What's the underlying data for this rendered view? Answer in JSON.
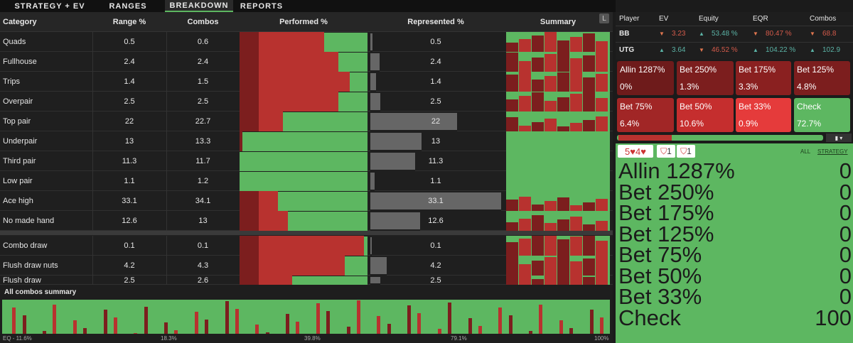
{
  "tabs": [
    "STRATEGY + EV",
    "RANGES",
    "BREAKDOWN",
    "REPORTS"
  ],
  "table": {
    "headers": [
      "Category",
      "Range %",
      "Combos",
      "Performed %",
      "Represented %",
      "Summary"
    ],
    "corner": "L",
    "rows": [
      {
        "category": "Quads",
        "range": 0.5,
        "combos": 0.6,
        "represented": 0.5,
        "performed_check": 34
      },
      {
        "category": "Fullhouse",
        "range": 2.4,
        "combos": 2.4,
        "represented": 2.4,
        "performed_check": 23
      },
      {
        "category": "Trips",
        "range": 1.4,
        "combos": 1.5,
        "represented": 1.4,
        "performed_check": 14
      },
      {
        "category": "Overpair",
        "range": 2.5,
        "combos": 2.5,
        "represented": 2.5,
        "performed_check": 23
      },
      {
        "category": "Top pair",
        "range": 22,
        "combos": 22.7,
        "represented": 22,
        "performed_check": 66
      },
      {
        "category": "Underpair",
        "range": 13,
        "combos": 13.3,
        "represented": 13,
        "performed_check": 98
      },
      {
        "category": "Third pair",
        "range": 11.3,
        "combos": 11.7,
        "represented": 11.3,
        "performed_check": 100
      },
      {
        "category": "Low pair",
        "range": 1.1,
        "combos": 1.2,
        "represented": 1.1,
        "performed_check": 100
      },
      {
        "category": "Ace high",
        "range": 33.1,
        "combos": 34.1,
        "represented": 33.1,
        "performed_check": 70
      },
      {
        "category": "No made hand",
        "range": 12.6,
        "combos": 13,
        "represented": 12.6,
        "performed_check": 62
      },
      {
        "category": "Combo draw",
        "range": 0.1,
        "combos": 0.1,
        "represented": 0.1,
        "performed_check": 3
      },
      {
        "category": "Flush draw nuts",
        "range": 4.2,
        "combos": 4.3,
        "represented": 4.2,
        "performed_check": 18
      },
      {
        "category": "Flush draw",
        "range": 2.5,
        "combos": 2.6,
        "represented": 2.5,
        "performed_check": 59
      }
    ]
  },
  "summary": {
    "title": "All combos summary",
    "axis_labels": [
      "EQ - 11.6%",
      "18.3%",
      "39.8%",
      "79.1%",
      "100%"
    ]
  },
  "players": {
    "headers": [
      "Player",
      "EV",
      "Equity",
      "EQR",
      "Combos"
    ],
    "rows": [
      {
        "name": "BB",
        "cells": [
          {
            "text": "3.23",
            "dir": "down"
          },
          {
            "text": "53.48 %",
            "dir": "up"
          },
          {
            "text": "80.47 %",
            "dir": "down"
          },
          {
            "text": "68.8",
            "dir": "down"
          }
        ]
      },
      {
        "name": "UTG",
        "cells": [
          {
            "text": "3.64",
            "dir": "up"
          },
          {
            "text": "46.52 %",
            "dir": "down"
          },
          {
            "text": "104.22 %",
            "dir": "up"
          },
          {
            "text": "102.9",
            "dir": "up"
          }
        ]
      }
    ]
  },
  "actions": [
    {
      "name": "Allin 1287%",
      "freq": "0%",
      "color": "#6e1b1b",
      "hand_value": 0
    },
    {
      "name": "Bet 250%",
      "freq": "1.3%",
      "color": "#7c1e1e",
      "hand_value": 0
    },
    {
      "name": "Bet 175%",
      "freq": "3.3%",
      "color": "#8a2020",
      "hand_value": 0
    },
    {
      "name": "Bet 125%",
      "freq": "4.8%",
      "color": "#7c1e1e",
      "hand_value": 0
    },
    {
      "name": "Bet 75%",
      "freq": "6.4%",
      "color": "#a12626",
      "hand_value": 0
    },
    {
      "name": "Bet 50%",
      "freq": "10.6%",
      "color": "#c52e2e",
      "hand_value": 0
    },
    {
      "name": "Bet 33%",
      "freq": "0.9%",
      "color": "#e53b3b",
      "hand_value": 0
    },
    {
      "name": "Check",
      "freq": "72.7%",
      "color": "#5db761",
      "hand_value": 100
    }
  ],
  "hand": {
    "cards": "5♥4♥",
    "badges": [
      "1",
      "1"
    ],
    "filters": [
      "ALL",
      "STRATEGY"
    ]
  }
}
